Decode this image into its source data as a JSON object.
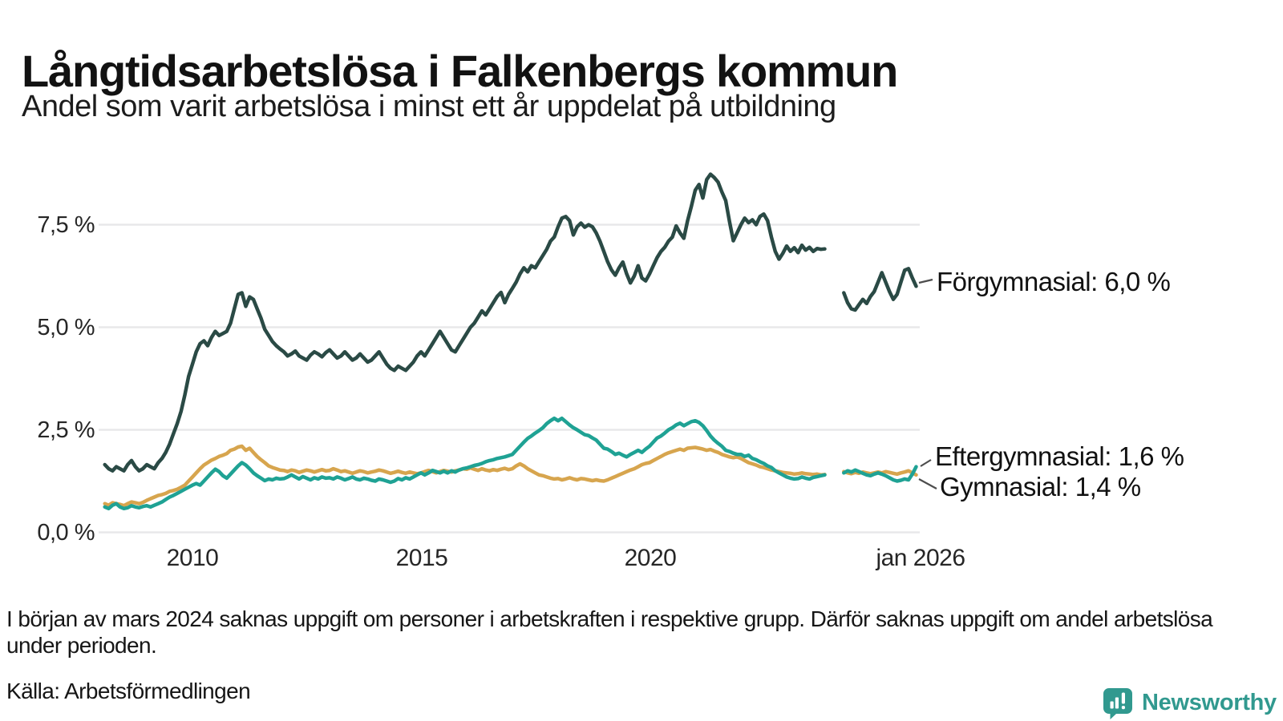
{
  "header": {
    "title": "Långtidsarbetslösa i Falkenbergs kommun",
    "subtitle": "Andel som varit arbetslösa i minst ett år uppdelat på utbildning"
  },
  "chart_data": {
    "type": "line",
    "unit": "%",
    "start_month": "2008-02",
    "end_month": "2025-11",
    "missing_months": [
      "2023-12",
      "2024-01",
      "2024-02",
      "2024-03"
    ],
    "grid": true,
    "legend_position": "direct-labels-right",
    "x_axis": {
      "tick_labels": [
        "2010",
        "2015",
        "2020",
        "jan 2026"
      ],
      "tick_years": [
        2010,
        2015,
        2020,
        2026
      ]
    },
    "y_axis": {
      "tick_labels": [
        "7,5 %",
        "5,0 %",
        "2,5 %",
        "0,0 %"
      ],
      "tick_values": [
        7.5,
        5.0,
        2.5,
        0.0
      ],
      "ylim": [
        0,
        9
      ]
    },
    "series": [
      {
        "name": "Förgymnasial",
        "end_label": "Förgymnasial: 6,0 %",
        "end_value": "6,0 %",
        "color": "#2a4a45",
        "values": [
          1.65,
          1.55,
          1.5,
          1.6,
          1.55,
          1.5,
          1.65,
          1.75,
          1.6,
          1.5,
          1.55,
          1.65,
          1.6,
          1.55,
          1.7,
          1.8,
          1.95,
          2.15,
          2.4,
          2.65,
          2.95,
          3.35,
          3.8,
          4.1,
          4.4,
          4.6,
          4.67,
          4.55,
          4.75,
          4.9,
          4.8,
          4.85,
          4.9,
          5.1,
          5.45,
          5.8,
          5.84,
          5.51,
          5.74,
          5.68,
          5.45,
          5.22,
          4.95,
          4.8,
          4.65,
          4.55,
          4.47,
          4.4,
          4.3,
          4.35,
          4.42,
          4.3,
          4.25,
          4.2,
          4.32,
          4.4,
          4.35,
          4.28,
          4.38,
          4.45,
          4.35,
          4.25,
          4.3,
          4.4,
          4.3,
          4.2,
          4.25,
          4.35,
          4.25,
          4.15,
          4.2,
          4.3,
          4.4,
          4.25,
          4.1,
          4.0,
          3.95,
          4.05,
          4.0,
          3.95,
          4.05,
          4.15,
          4.3,
          4.4,
          4.3,
          4.45,
          4.6,
          4.75,
          4.9,
          4.75,
          4.6,
          4.45,
          4.4,
          4.55,
          4.7,
          4.85,
          5.0,
          5.1,
          5.25,
          5.4,
          5.3,
          5.45,
          5.6,
          5.75,
          5.85,
          5.6,
          5.8,
          5.95,
          6.1,
          6.3,
          6.45,
          6.35,
          6.5,
          6.45,
          6.6,
          6.75,
          6.9,
          7.1,
          7.2,
          7.45,
          7.66,
          7.7,
          7.6,
          7.25,
          7.45,
          7.54,
          7.44,
          7.5,
          7.45,
          7.3,
          7.1,
          6.85,
          6.6,
          6.4,
          6.27,
          6.45,
          6.59,
          6.3,
          6.08,
          6.25,
          6.5,
          6.2,
          6.13,
          6.3,
          6.5,
          6.7,
          6.85,
          6.95,
          7.1,
          7.2,
          7.47,
          7.3,
          7.17,
          7.6,
          7.95,
          8.34,
          8.48,
          8.15,
          8.6,
          8.73,
          8.65,
          8.54,
          8.3,
          8.09,
          7.57,
          7.11,
          7.3,
          7.5,
          7.66,
          7.55,
          7.62,
          7.5,
          7.7,
          7.76,
          7.6,
          7.2,
          6.85,
          6.66,
          6.8,
          6.98,
          6.85,
          6.94,
          6.82,
          7.0,
          6.88,
          6.95,
          6.85,
          6.92,
          6.9,
          6.91,
          null,
          null,
          null,
          null,
          5.84,
          5.6,
          5.45,
          5.42,
          5.55,
          5.68,
          5.58,
          5.75,
          5.87,
          6.1,
          6.33,
          6.1,
          5.87,
          5.68,
          5.8,
          6.1,
          6.39,
          6.43,
          6.2,
          6.0
        ]
      },
      {
        "name": "Eftergymnasial",
        "end_label": "Eftergymnasial: 1,6 %",
        "end_value": "1,6 %",
        "color": "#1fa294",
        "values": [
          0.62,
          0.58,
          0.66,
          0.7,
          0.62,
          0.58,
          0.6,
          0.65,
          0.62,
          0.6,
          0.63,
          0.65,
          0.62,
          0.66,
          0.7,
          0.74,
          0.8,
          0.86,
          0.9,
          0.95,
          1.0,
          1.05,
          1.1,
          1.15,
          1.19,
          1.15,
          1.25,
          1.35,
          1.45,
          1.54,
          1.48,
          1.38,
          1.32,
          1.42,
          1.52,
          1.62,
          1.7,
          1.64,
          1.55,
          1.45,
          1.38,
          1.32,
          1.26,
          1.3,
          1.28,
          1.32,
          1.3,
          1.31,
          1.35,
          1.4,
          1.35,
          1.3,
          1.36,
          1.32,
          1.28,
          1.33,
          1.3,
          1.35,
          1.32,
          1.33,
          1.3,
          1.35,
          1.32,
          1.28,
          1.31,
          1.35,
          1.3,
          1.28,
          1.32,
          1.3,
          1.27,
          1.25,
          1.3,
          1.28,
          1.25,
          1.22,
          1.25,
          1.31,
          1.28,
          1.33,
          1.3,
          1.35,
          1.4,
          1.45,
          1.4,
          1.45,
          1.51,
          1.48,
          1.45,
          1.49,
          1.45,
          1.5,
          1.47,
          1.52,
          1.55,
          1.57,
          1.6,
          1.63,
          1.65,
          1.68,
          1.72,
          1.75,
          1.77,
          1.8,
          1.82,
          1.84,
          1.87,
          1.9,
          2.0,
          2.1,
          2.2,
          2.29,
          2.35,
          2.42,
          2.48,
          2.55,
          2.65,
          2.72,
          2.78,
          2.72,
          2.78,
          2.7,
          2.62,
          2.55,
          2.5,
          2.44,
          2.38,
          2.36,
          2.3,
          2.25,
          2.15,
          2.05,
          2.03,
          1.97,
          1.9,
          1.93,
          1.88,
          1.84,
          1.9,
          1.95,
          2.0,
          1.95,
          2.03,
          2.1,
          2.2,
          2.3,
          2.35,
          2.42,
          2.5,
          2.55,
          2.62,
          2.66,
          2.6,
          2.65,
          2.7,
          2.72,
          2.68,
          2.6,
          2.48,
          2.35,
          2.25,
          2.17,
          2.1,
          2.0,
          1.97,
          1.93,
          1.9,
          1.9,
          1.85,
          1.88,
          1.8,
          1.77,
          1.72,
          1.68,
          1.62,
          1.58,
          1.5,
          1.45,
          1.4,
          1.35,
          1.32,
          1.3,
          1.31,
          1.35,
          1.32,
          1.3,
          1.34,
          1.36,
          1.38,
          1.4,
          null,
          null,
          null,
          null,
          1.45,
          1.5,
          1.47,
          1.52,
          1.48,
          1.44,
          1.4,
          1.38,
          1.42,
          1.45,
          1.42,
          1.38,
          1.33,
          1.28,
          1.25,
          1.27,
          1.3,
          1.28,
          1.42,
          1.6
        ]
      },
      {
        "name": "Gymnasial",
        "end_label": "Gymnasial: 1,4 %",
        "end_value": "1,4 %",
        "color": "#d7a54e",
        "values": [
          0.7,
          0.66,
          0.72,
          0.7,
          0.68,
          0.65,
          0.7,
          0.74,
          0.72,
          0.7,
          0.73,
          0.78,
          0.82,
          0.86,
          0.9,
          0.92,
          0.95,
          1.0,
          1.02,
          1.05,
          1.1,
          1.15,
          1.25,
          1.35,
          1.45,
          1.55,
          1.64,
          1.7,
          1.76,
          1.8,
          1.85,
          1.88,
          1.92,
          2.0,
          2.03,
          2.08,
          2.1,
          2.0,
          2.05,
          1.95,
          1.85,
          1.77,
          1.7,
          1.62,
          1.58,
          1.55,
          1.52,
          1.51,
          1.48,
          1.52,
          1.5,
          1.46,
          1.49,
          1.52,
          1.5,
          1.47,
          1.5,
          1.53,
          1.5,
          1.51,
          1.55,
          1.52,
          1.48,
          1.5,
          1.47,
          1.44,
          1.47,
          1.5,
          1.48,
          1.45,
          1.47,
          1.49,
          1.52,
          1.5,
          1.47,
          1.44,
          1.46,
          1.49,
          1.46,
          1.44,
          1.47,
          1.45,
          1.43,
          1.45,
          1.48,
          1.51,
          1.48,
          1.45,
          1.48,
          1.51,
          1.49,
          1.47,
          1.5,
          1.52,
          1.55,
          1.54,
          1.57,
          1.54,
          1.51,
          1.55,
          1.52,
          1.5,
          1.53,
          1.51,
          1.54,
          1.56,
          1.53,
          1.55,
          1.62,
          1.67,
          1.62,
          1.55,
          1.5,
          1.45,
          1.4,
          1.38,
          1.35,
          1.32,
          1.3,
          1.31,
          1.28,
          1.3,
          1.33,
          1.3,
          1.28,
          1.31,
          1.3,
          1.28,
          1.26,
          1.28,
          1.26,
          1.25,
          1.28,
          1.32,
          1.36,
          1.4,
          1.44,
          1.48,
          1.52,
          1.55,
          1.6,
          1.65,
          1.68,
          1.7,
          1.75,
          1.8,
          1.85,
          1.9,
          1.94,
          1.97,
          2.0,
          2.03,
          2.0,
          2.05,
          2.06,
          2.07,
          2.05,
          2.03,
          2.0,
          2.02,
          1.98,
          1.95,
          1.9,
          1.87,
          1.84,
          1.82,
          1.84,
          1.8,
          1.75,
          1.7,
          1.67,
          1.64,
          1.6,
          1.58,
          1.55,
          1.52,
          1.5,
          1.48,
          1.46,
          1.45,
          1.44,
          1.42,
          1.43,
          1.45,
          1.43,
          1.42,
          1.41,
          1.42,
          1.4,
          1.41,
          null,
          null,
          null,
          null,
          1.48,
          1.45,
          1.43,
          1.46,
          1.44,
          1.47,
          1.45,
          1.43,
          1.45,
          1.47,
          1.45,
          1.48,
          1.46,
          1.44,
          1.42,
          1.45,
          1.47,
          1.5,
          1.45,
          1.4
        ]
      }
    ]
  },
  "footnote": {
    "text": "I början av mars 2024 saknas uppgift om personer i arbetskraften i respektive grupp. Därför saknas uppgift om andel arbetslösa under perioden."
  },
  "source": {
    "label": "Källa: Arbetsförmedlingen"
  },
  "branding": {
    "name": "Newsworthy",
    "color": "#31998f"
  }
}
